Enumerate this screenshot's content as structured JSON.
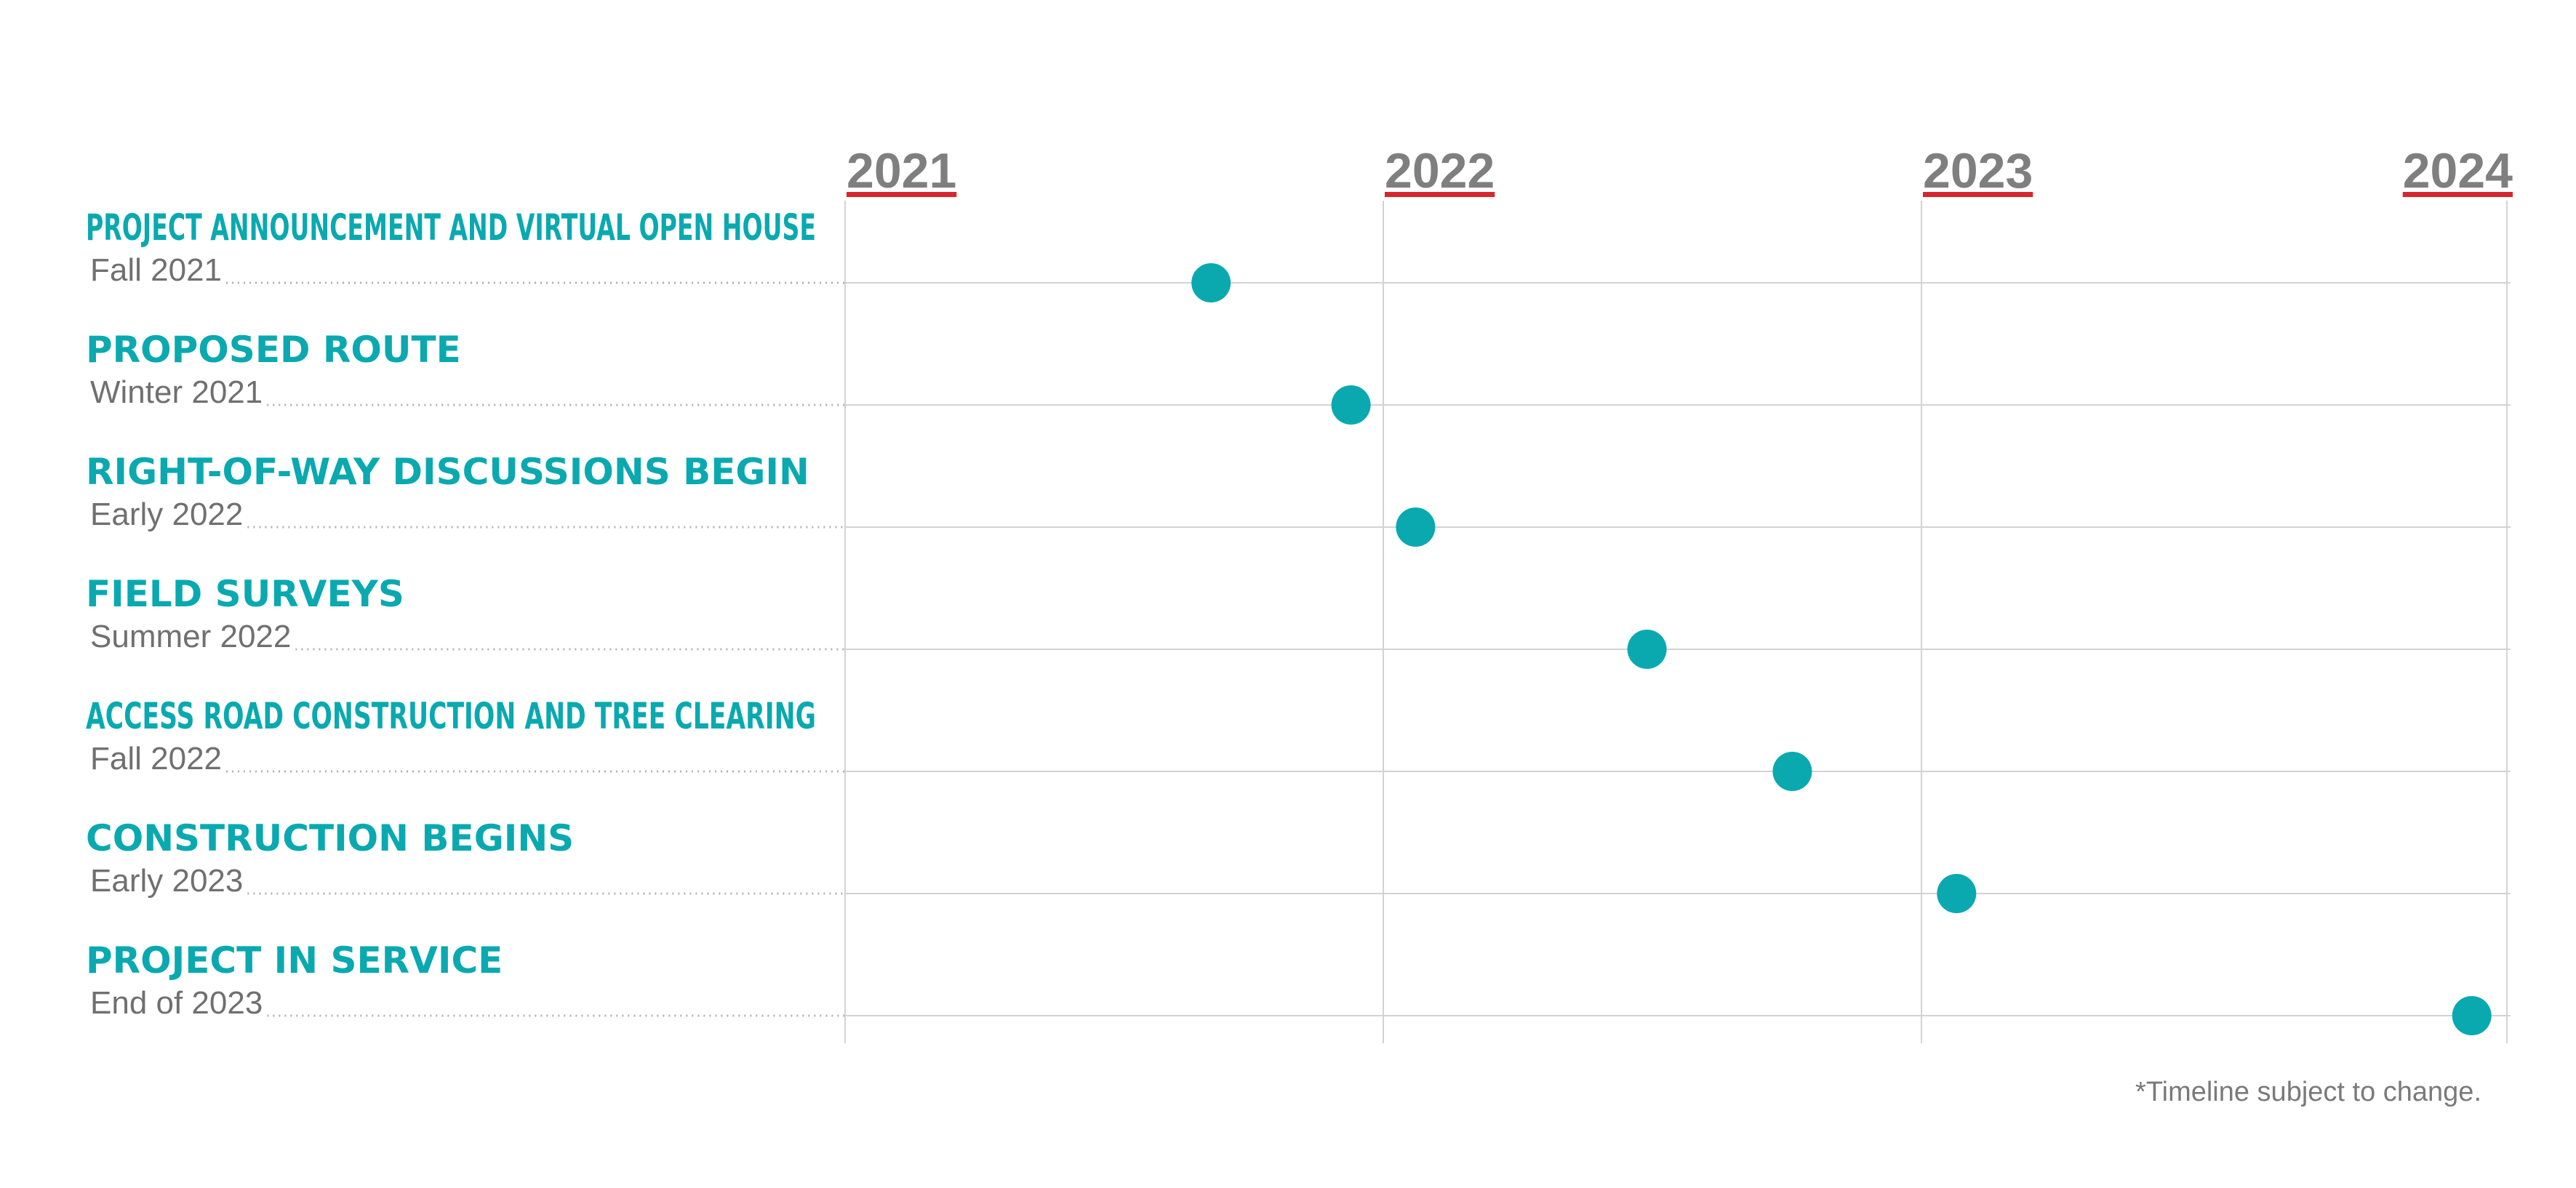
{
  "colors": {
    "accent": "#0aa9b0",
    "year_label": "#7f7f7f",
    "year_underline": "#d7262e",
    "date_text": "#707070",
    "grid": "#d3d3d3",
    "footnote": "#7a7a7a"
  },
  "chart_data": {
    "type": "scatter",
    "title": "",
    "xlabel": "",
    "ylabel": "",
    "x_axis": {
      "kind": "time",
      "ticks": [
        "2021",
        "2022",
        "2023",
        "2024"
      ],
      "range": [
        2021.0,
        2024.0
      ]
    },
    "grid": true,
    "tasks": [
      {
        "name": "PROJECT ANNOUNCEMENT AND VIRTUAL OPEN HOUSE",
        "date_label": "Fall 2021",
        "x": 2021.68
      },
      {
        "name": "PROPOSED ROUTE",
        "date_label": "Winter 2021",
        "x": 2021.94
      },
      {
        "name": "RIGHT-OF-WAY DISCUSSIONS BEGIN",
        "date_label": "Early 2022",
        "x": 2022.06
      },
      {
        "name": "FIELD SURVEYS",
        "date_label": "Summer 2022",
        "x": 2022.49
      },
      {
        "name": "ACCESS ROAD CONSTRUCTION AND TREE CLEARING",
        "date_label": "Fall 2022",
        "x": 2022.76
      },
      {
        "name": "CONSTRUCTION BEGINS",
        "date_label": "Early 2023",
        "x": 2023.06
      },
      {
        "name": "PROJECT IN SERVICE",
        "date_label": "End of 2023",
        "x": 2023.94
      }
    ],
    "footnote": "*Timeline subject to change."
  }
}
